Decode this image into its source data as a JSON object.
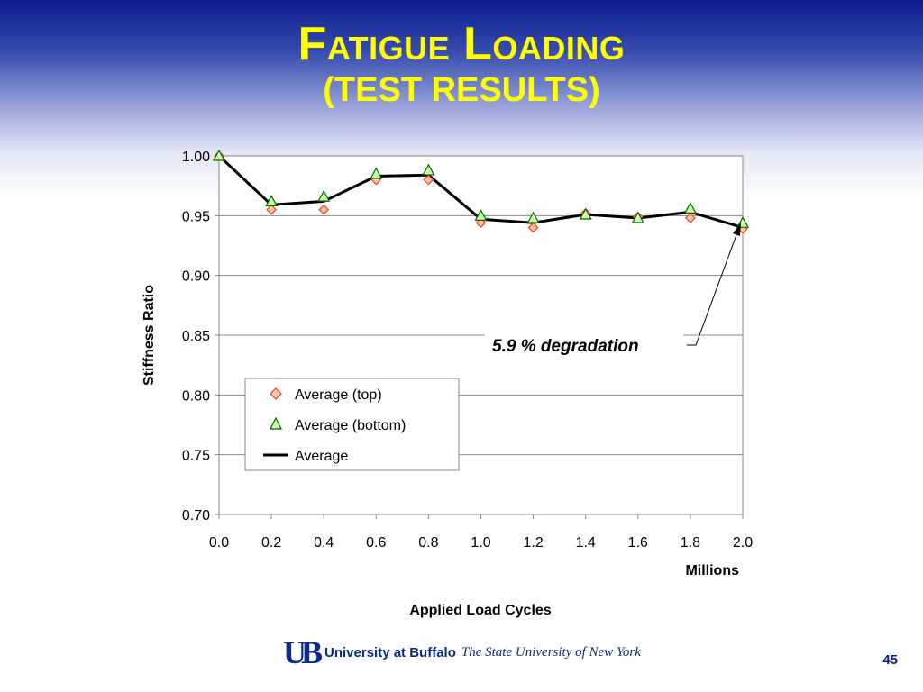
{
  "slide": {
    "title_line1": "Fatigue Loading",
    "title_line2": "(TEST RESULTS)",
    "page_number": "45",
    "footer": {
      "logo_mark": "UB",
      "university": "University at Buffalo",
      "subtitle": "The State University of New York",
      "logo_icon": "ub-logo-icon"
    }
  },
  "chart_data": {
    "type": "line",
    "ylabel": "Stiffness Ratio",
    "xlabel": "Applied Load Cycles",
    "x_unit_label": "Millions",
    "xlim": [
      0.0,
      2.0
    ],
    "ylim": [
      0.7,
      1.0
    ],
    "x_ticks": [
      "0.0",
      "0.2",
      "0.4",
      "0.6",
      "0.8",
      "1.0",
      "1.2",
      "1.4",
      "1.6",
      "1.8",
      "2.0"
    ],
    "y_ticks": [
      "0.70",
      "0.75",
      "0.80",
      "0.85",
      "0.90",
      "0.95",
      "1.00"
    ],
    "x": [
      0.0,
      0.2,
      0.4,
      0.6,
      0.8,
      1.0,
      1.2,
      1.4,
      1.6,
      1.8,
      2.0
    ],
    "grid": "horizontal",
    "legend_position": "bottom-left",
    "series": [
      {
        "name": "Average (top)",
        "marker": "diamond",
        "color": "#ff3333",
        "fill": "#ffcc99",
        "values": [
          1.0,
          0.955,
          0.955,
          0.98,
          0.98,
          0.944,
          0.94,
          0.952,
          0.949,
          0.948,
          0.939
        ]
      },
      {
        "name": "Average (bottom)",
        "marker": "triangle",
        "color": "#006600",
        "fill": "#ccffaa",
        "values": [
          1.0,
          0.962,
          0.966,
          0.985,
          0.988,
          0.95,
          0.948,
          0.951,
          0.948,
          0.956,
          0.944
        ]
      },
      {
        "name": "Average",
        "marker": "none",
        "color": "#000000",
        "values": [
          1.0,
          0.959,
          0.962,
          0.983,
          0.984,
          0.947,
          0.944,
          0.951,
          0.948,
          0.953,
          0.94
        ]
      }
    ],
    "annotation": {
      "text": "5.9 % degradation",
      "points_to_x": 2.0,
      "points_to_y": 0.94
    }
  }
}
